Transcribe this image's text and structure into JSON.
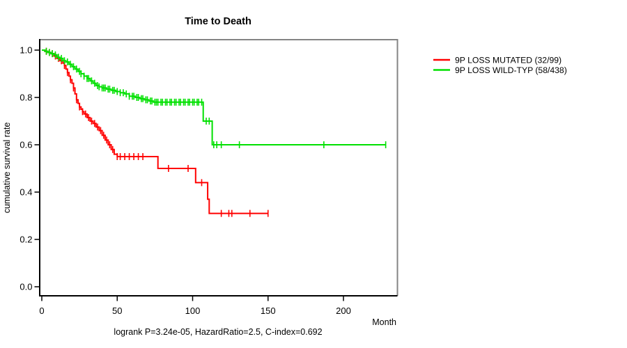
{
  "title": "Time to Death",
  "axes": {
    "ylabel": "cumulative survival rate",
    "xlabel": "Month"
  },
  "caption": "logrank P=3.24e-05, HazardRatio=2.5, C-index=0.692",
  "legend": {
    "items": [
      {
        "label": "9P LOSS MUTATED (32/99)",
        "color": "#ff0000"
      },
      {
        "label": "9P LOSS WILD-TYP (58/438)",
        "color": "#00e000"
      }
    ]
  },
  "chart_data": {
    "type": "line",
    "subtype": "kaplan-meier-step",
    "title": "Time to Death",
    "xlabel": "Month",
    "ylabel": "cumulative survival rate",
    "xlim": [
      0,
      237
    ],
    "ylim": [
      0.0,
      1.0
    ],
    "xticks": [
      0,
      50,
      100,
      150,
      200
    ],
    "yticks": [
      0.0,
      0.2,
      0.4,
      0.6,
      0.8,
      1.0
    ],
    "grid": false,
    "legend_position": "right-top",
    "series": [
      {
        "name": "9P LOSS MUTATED (32/99)",
        "color": "#ff0000",
        "end_x": 150,
        "steps": [
          [
            0,
            1.0
          ],
          [
            2,
            0.995
          ],
          [
            4,
            0.99
          ],
          [
            6,
            0.985
          ],
          [
            8,
            0.975
          ],
          [
            10,
            0.965
          ],
          [
            12,
            0.955
          ],
          [
            14,
            0.945
          ],
          [
            15,
            0.935
          ],
          [
            16,
            0.92
          ],
          [
            17,
            0.905
          ],
          [
            18,
            0.89
          ],
          [
            19,
            0.875
          ],
          [
            20,
            0.86
          ],
          [
            21,
            0.84
          ],
          [
            22,
            0.815
          ],
          [
            23,
            0.79
          ],
          [
            24,
            0.775
          ],
          [
            25,
            0.76
          ],
          [
            26,
            0.75
          ],
          [
            27,
            0.74
          ],
          [
            28,
            0.73
          ],
          [
            30,
            0.715
          ],
          [
            32,
            0.7
          ],
          [
            34,
            0.69
          ],
          [
            36,
            0.675
          ],
          [
            38,
            0.66
          ],
          [
            40,
            0.64
          ],
          [
            42,
            0.62
          ],
          [
            44,
            0.6
          ],
          [
            46,
            0.58
          ],
          [
            48,
            0.56
          ],
          [
            50,
            0.55
          ],
          [
            77,
            0.5
          ],
          [
            102,
            0.44
          ],
          [
            110,
            0.37
          ],
          [
            111,
            0.31
          ]
        ],
        "censor_x": [
          3,
          5,
          7,
          9,
          11,
          13,
          15,
          17,
          19,
          21,
          23,
          25,
          27,
          29,
          31,
          33,
          35,
          37,
          39,
          41,
          43,
          45,
          47,
          50,
          52,
          55,
          58,
          61,
          64,
          67,
          84,
          97,
          106,
          119,
          124,
          126,
          138,
          150
        ]
      },
      {
        "name": "9P LOSS WILD-TYP (58/438)",
        "color": "#00e000",
        "end_x": 228,
        "steps": [
          [
            0,
            1.0
          ],
          [
            2,
            0.995
          ],
          [
            4,
            0.99
          ],
          [
            6,
            0.985
          ],
          [
            8,
            0.98
          ],
          [
            10,
            0.97
          ],
          [
            12,
            0.965
          ],
          [
            14,
            0.955
          ],
          [
            16,
            0.95
          ],
          [
            18,
            0.94
          ],
          [
            20,
            0.93
          ],
          [
            22,
            0.92
          ],
          [
            24,
            0.91
          ],
          [
            26,
            0.9
          ],
          [
            28,
            0.89
          ],
          [
            30,
            0.88
          ],
          [
            32,
            0.87
          ],
          [
            34,
            0.86
          ],
          [
            36,
            0.85
          ],
          [
            38,
            0.845
          ],
          [
            40,
            0.84
          ],
          [
            43,
            0.835
          ],
          [
            46,
            0.83
          ],
          [
            49,
            0.825
          ],
          [
            52,
            0.82
          ],
          [
            55,
            0.815
          ],
          [
            58,
            0.805
          ],
          [
            62,
            0.8
          ],
          [
            65,
            0.795
          ],
          [
            68,
            0.79
          ],
          [
            71,
            0.785
          ],
          [
            74,
            0.78
          ],
          [
            107,
            0.7
          ],
          [
            113,
            0.6
          ]
        ],
        "censor_x": [
          3,
          5,
          7,
          9,
          11,
          13,
          15,
          17,
          19,
          21,
          23,
          25,
          26,
          28,
          30,
          31,
          33,
          35,
          37,
          38,
          40,
          41,
          42,
          44,
          45,
          47,
          48,
          50,
          52,
          54,
          56,
          58,
          60,
          61,
          63,
          64,
          66,
          67,
          69,
          70,
          72,
          73,
          75,
          76,
          77,
          79,
          80,
          82,
          83,
          85,
          86,
          88,
          89,
          91,
          92,
          94,
          95,
          97,
          98,
          100,
          101,
          103,
          104,
          106,
          109,
          111,
          114,
          116,
          119,
          131,
          187,
          228
        ]
      }
    ]
  }
}
